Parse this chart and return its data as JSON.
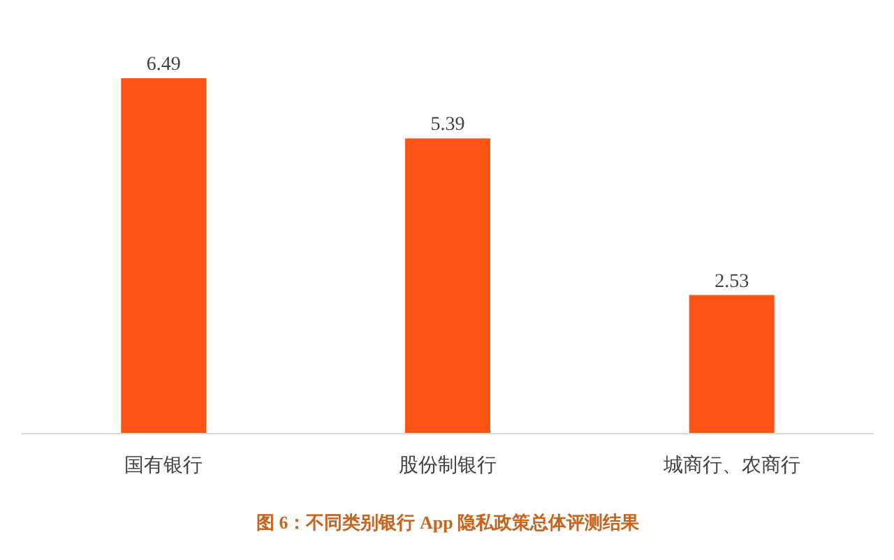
{
  "chart_data": {
    "type": "bar",
    "title": "图 6：不同类别银行 App 隐私政策总体评测结果",
    "categories": [
      "国有银行",
      "股份制银行",
      "城商行、农商行"
    ],
    "values": [
      6.49,
      5.39,
      2.53
    ],
    "color": "#ff5415",
    "data_labels": true
  }
}
